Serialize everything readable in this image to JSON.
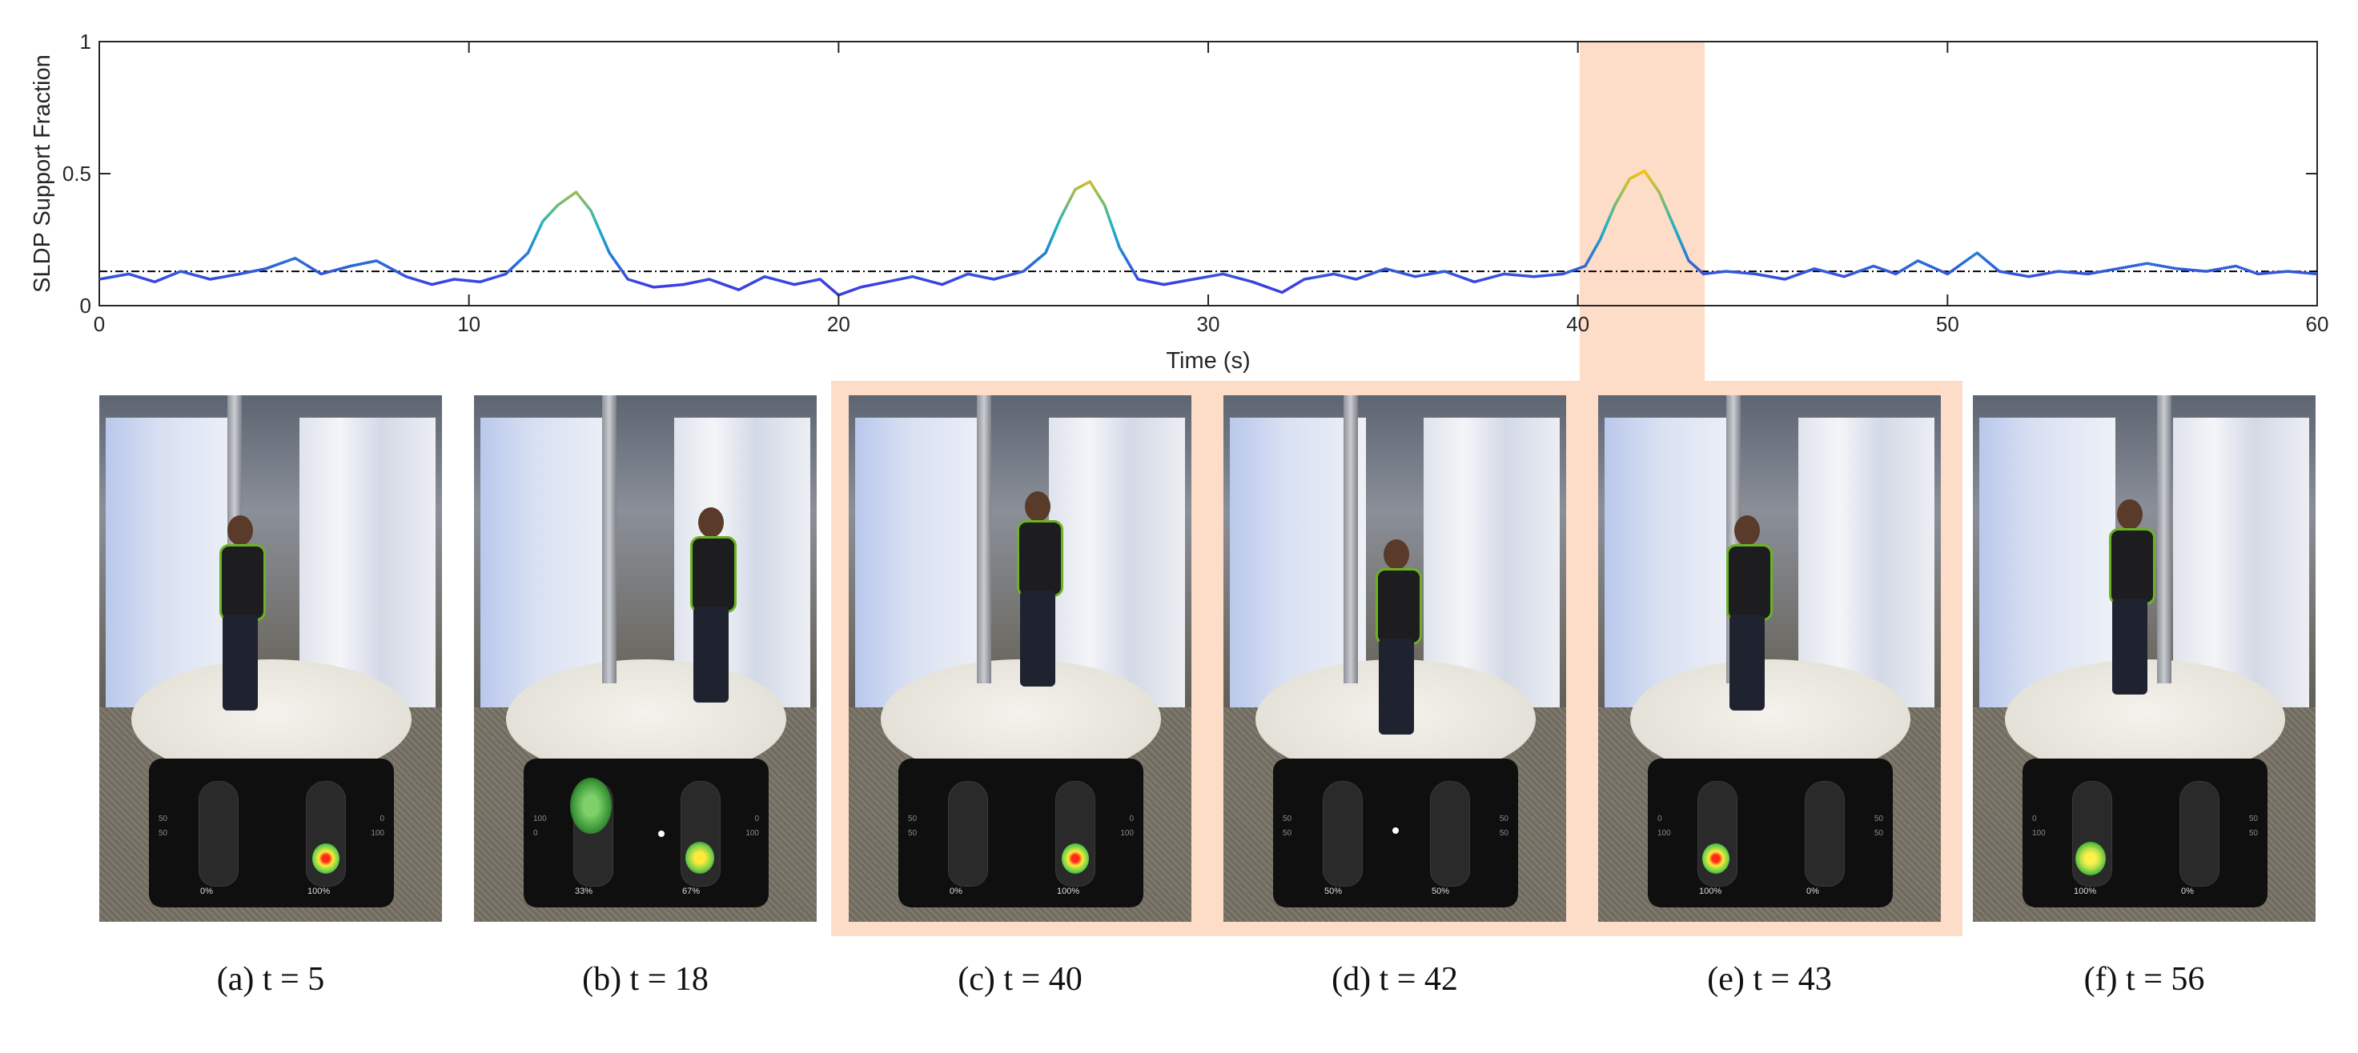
{
  "chart_data": {
    "type": "line",
    "title": "",
    "xlabel": "Time (s)",
    "ylabel": "SLDP Support Fraction",
    "xlim": [
      0,
      60
    ],
    "ylim": [
      0,
      1
    ],
    "xticks": [
      "0",
      "10",
      "20",
      "30",
      "40",
      "50",
      "60"
    ],
    "yticks": [
      "0",
      "0.5",
      "1"
    ],
    "threshold": 0.13,
    "highlight_range": [
      40,
      43.4
    ],
    "grid": false,
    "legend": "none",
    "series": [
      {
        "x": [
          0,
          0.8,
          1.5,
          2.2,
          3,
          3.8,
          4.5,
          5.3,
          6,
          6.8,
          7.5,
          8.3,
          9,
          9.6,
          10.3,
          11,
          11.6,
          12,
          12.4,
          12.9,
          13.3,
          13.8,
          14.3,
          15,
          15.8,
          16.5,
          17.3,
          18,
          18.8,
          19.5,
          20,
          20.6,
          21.3,
          22,
          22.8,
          23.5,
          24.2,
          25,
          25.6,
          26,
          26.4,
          26.8,
          27.2,
          27.6,
          28.1,
          28.8,
          29.6,
          30.4,
          31.2,
          32,
          32.6,
          33.4,
          34,
          34.8,
          35.6,
          36.4,
          37.2,
          38,
          38.8,
          39.6,
          40.2,
          40.6,
          41,
          41.4,
          41.8,
          42.2,
          42.6,
          43,
          43.4,
          44,
          44.8,
          45.6,
          46.4,
          47.2,
          48,
          48.6,
          49.2,
          50,
          50.8,
          51.4,
          52.2,
          53,
          53.8,
          54.6,
          55.4,
          56.2,
          57,
          57.8,
          58.4,
          59.2,
          60
        ],
        "y": [
          0.1,
          0.12,
          0.09,
          0.13,
          0.1,
          0.12,
          0.14,
          0.18,
          0.12,
          0.15,
          0.17,
          0.11,
          0.08,
          0.1,
          0.09,
          0.12,
          0.2,
          0.32,
          0.38,
          0.43,
          0.36,
          0.2,
          0.1,
          0.07,
          0.08,
          0.1,
          0.06,
          0.11,
          0.08,
          0.1,
          0.04,
          0.07,
          0.09,
          0.11,
          0.08,
          0.12,
          0.1,
          0.13,
          0.2,
          0.33,
          0.44,
          0.47,
          0.38,
          0.22,
          0.1,
          0.08,
          0.1,
          0.12,
          0.09,
          0.05,
          0.1,
          0.12,
          0.1,
          0.14,
          0.11,
          0.13,
          0.09,
          0.12,
          0.11,
          0.12,
          0.15,
          0.25,
          0.38,
          0.48,
          0.51,
          0.43,
          0.3,
          0.17,
          0.12,
          0.13,
          0.12,
          0.1,
          0.14,
          0.11,
          0.15,
          0.12,
          0.17,
          0.12,
          0.2,
          0.13,
          0.11,
          0.13,
          0.12,
          0.14,
          0.16,
          0.14,
          0.13,
          0.15,
          0.12,
          0.13,
          0.12
        ]
      }
    ]
  },
  "panels": [
    {
      "caption": "(a) t = 5",
      "left_pct": "0%",
      "right_pct": "100%",
      "scale_left_top": "50",
      "scale_left_bottom": "50",
      "scale_right_top": "0",
      "scale_right_bottom": "100",
      "highlighted": false
    },
    {
      "caption": "(b) t = 18",
      "left_pct": "33%",
      "right_pct": "67%",
      "scale_left_top": "100",
      "scale_left_bottom": "0",
      "scale_right_top": "0",
      "scale_right_bottom": "100",
      "highlighted": false
    },
    {
      "caption": "(c) t = 40",
      "left_pct": "0%",
      "right_pct": "100%",
      "scale_left_top": "50",
      "scale_left_bottom": "50",
      "scale_right_top": "0",
      "scale_right_bottom": "100",
      "highlighted": true
    },
    {
      "caption": "(d) t = 42",
      "left_pct": "50%",
      "right_pct": "50%",
      "scale_left_top": "50",
      "scale_left_bottom": "50",
      "scale_right_top": "50",
      "scale_right_bottom": "50",
      "highlighted": true
    },
    {
      "caption": "(e) t = 43",
      "left_pct": "100%",
      "right_pct": "0%",
      "scale_left_top": "0",
      "scale_left_bottom": "100",
      "scale_right_top": "50",
      "scale_right_bottom": "50",
      "highlighted": true
    },
    {
      "caption": "(f) t = 56",
      "left_pct": "100%",
      "right_pct": "0%",
      "scale_left_top": "0",
      "scale_left_bottom": "100",
      "scale_right_top": "50",
      "scale_right_bottom": "50",
      "highlighted": false
    }
  ],
  "colors": {
    "line_low": "#3b3fe0",
    "line_mid": "#19b3c7",
    "line_high": "#f2c20c",
    "highlight": "#fddcc8",
    "threshold": "#000000"
  }
}
